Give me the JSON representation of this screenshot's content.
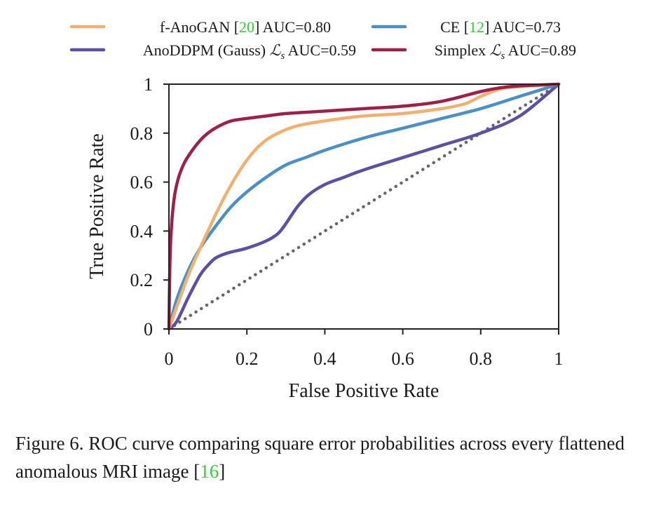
{
  "chart_data": {
    "type": "line",
    "xlabel": "False Positive Rate",
    "ylabel": "True Positive Rate",
    "xlim": [
      0,
      1
    ],
    "ylim": [
      0,
      1
    ],
    "xticks": [
      "0",
      "0.2",
      "0.4",
      "0.6",
      "0.8",
      "1"
    ],
    "yticks": [
      "0",
      "0.2",
      "0.4",
      "0.6",
      "0.8",
      "1"
    ],
    "grid": false,
    "legend_position": "top",
    "series": [
      {
        "key": "fanogan",
        "legend": {
          "pre": "f-AnoGAN [",
          "ref": "20",
          "post": "] AUC=0.80"
        },
        "color": "#f0b070",
        "x": [
          0,
          0.02,
          0.05,
          0.08,
          0.1,
          0.13,
          0.16,
          0.2,
          0.24,
          0.28,
          0.33,
          0.4,
          0.5,
          0.6,
          0.7,
          0.76,
          0.8,
          0.85,
          0.9,
          0.95,
          1
        ],
        "y": [
          0,
          0.09,
          0.22,
          0.33,
          0.4,
          0.5,
          0.59,
          0.69,
          0.76,
          0.8,
          0.83,
          0.85,
          0.87,
          0.88,
          0.9,
          0.92,
          0.95,
          0.98,
          0.99,
          0.995,
          1
        ]
      },
      {
        "key": "ce",
        "legend": {
          "pre": "CE [",
          "ref": "12",
          "post": "] AUC=0.73"
        },
        "color": "#4a90c4",
        "x": [
          0,
          0.02,
          0.05,
          0.08,
          0.12,
          0.16,
          0.2,
          0.25,
          0.3,
          0.35,
          0.4,
          0.5,
          0.6,
          0.7,
          0.8,
          0.9,
          1
        ],
        "y": [
          0,
          0.12,
          0.24,
          0.33,
          0.42,
          0.5,
          0.56,
          0.62,
          0.67,
          0.7,
          0.73,
          0.78,
          0.82,
          0.86,
          0.9,
          0.95,
          1
        ]
      },
      {
        "key": "anoddpm",
        "legend": {
          "pre": "AnoDDPM (Gauss) ",
          "math": "ℒ",
          "sub": "s",
          "post": " AUC=0.59"
        },
        "color": "#5e4fa2",
        "x": [
          0,
          0.02,
          0.05,
          0.08,
          0.1,
          0.12,
          0.15,
          0.2,
          0.25,
          0.28,
          0.3,
          0.33,
          0.36,
          0.4,
          0.45,
          0.5,
          0.6,
          0.7,
          0.8,
          0.9,
          1
        ],
        "y": [
          0,
          0.03,
          0.13,
          0.22,
          0.26,
          0.29,
          0.31,
          0.33,
          0.36,
          0.39,
          0.43,
          0.5,
          0.55,
          0.59,
          0.62,
          0.65,
          0.7,
          0.75,
          0.8,
          0.87,
          1
        ]
      },
      {
        "key": "simplex",
        "legend": {
          "pre": "Simplex ",
          "math": "ℒ",
          "sub": "s",
          "post": " AUC=0.89"
        },
        "color": "#9e1f4a",
        "x": [
          0,
          0.003,
          0.008,
          0.015,
          0.025,
          0.04,
          0.06,
          0.08,
          0.1,
          0.13,
          0.16,
          0.2,
          0.25,
          0.3,
          0.4,
          0.5,
          0.6,
          0.7,
          0.8,
          0.85,
          0.9,
          1
        ],
        "y": [
          0,
          0.3,
          0.45,
          0.55,
          0.62,
          0.68,
          0.73,
          0.77,
          0.8,
          0.83,
          0.85,
          0.86,
          0.87,
          0.88,
          0.89,
          0.9,
          0.91,
          0.93,
          0.97,
          0.985,
          0.993,
          1
        ]
      },
      {
        "key": "chance",
        "color": "#666666",
        "dashed": true,
        "x": [
          0,
          1
        ],
        "y": [
          0,
          1
        ]
      }
    ]
  },
  "caption": {
    "pre": "Figure 6.  ROC curve comparing square error probabilities across every flattened anomalous MRI image [",
    "ref": "16",
    "post": "]"
  }
}
